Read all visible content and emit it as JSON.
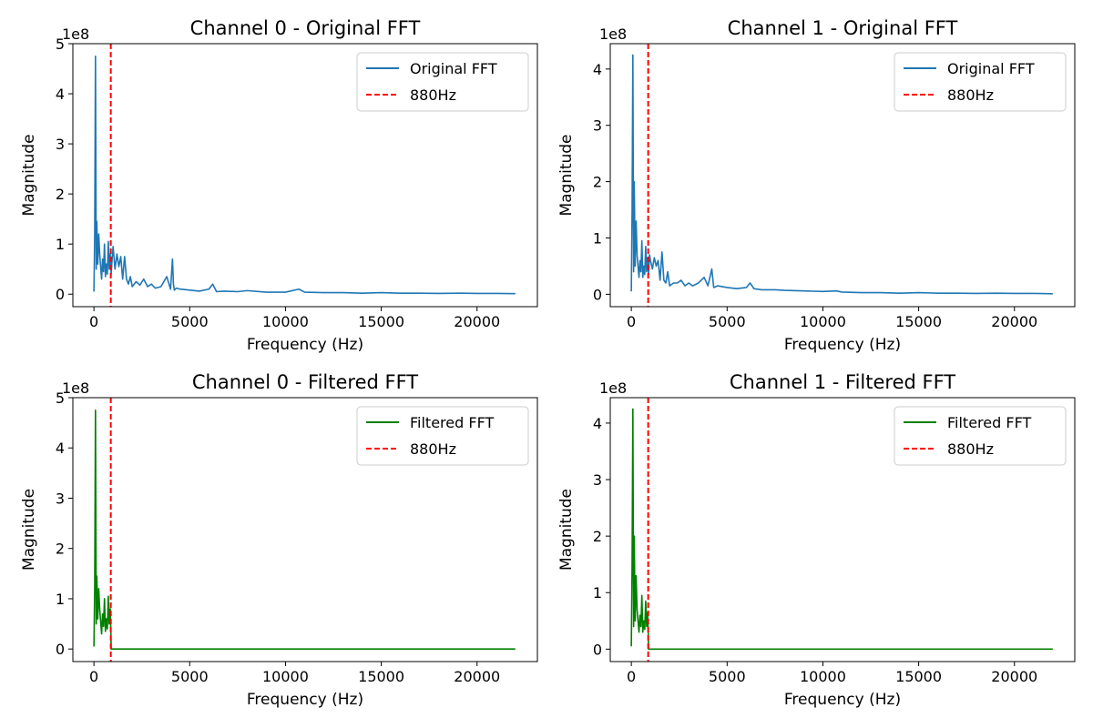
{
  "figure": {
    "background": "#ffffff"
  },
  "chart_data": [
    {
      "type": "line",
      "title": "Channel 0 - Original FFT",
      "xlabel": "Frequency (Hz)",
      "ylabel": "Magnitude",
      "y_offset_label": "1e8",
      "xlim": [
        -1100,
        23150
      ],
      "ylim": [
        -0.25,
        5.0
      ],
      "xticks": [
        0,
        5000,
        10000,
        15000,
        20000
      ],
      "yticks": [
        0,
        1,
        2,
        3,
        4,
        5
      ],
      "grid": false,
      "legend_position": "top-right",
      "vline": {
        "x": 880,
        "label": "880Hz",
        "color": "#ff0000",
        "style": "dashed"
      },
      "series": [
        {
          "name": "Original FFT",
          "color": "#1f77b4",
          "x": [
            0,
            40,
            80,
            120,
            150,
            200,
            250,
            300,
            350,
            400,
            450,
            500,
            550,
            600,
            650,
            700,
            750,
            800,
            850,
            900,
            950,
            1000,
            1100,
            1200,
            1300,
            1400,
            1500,
            1600,
            1700,
            1800,
            1900,
            2000,
            2200,
            2400,
            2600,
            2800,
            3000,
            3200,
            3500,
            3800,
            4000,
            4100,
            4150,
            4200,
            4300,
            4500,
            5000,
            5500,
            6000,
            6200,
            6400,
            6800,
            7500,
            8000,
            9000,
            10000,
            10700,
            11000,
            12000,
            13000,
            14000,
            15000,
            16000,
            17000,
            18000,
            19000,
            20000,
            21000,
            22000
          ],
          "y": [
            0.05,
            1.2,
            4.75,
            0.5,
            1.45,
            0.6,
            1.2,
            0.8,
            0.55,
            0.3,
            0.7,
            0.45,
            1.0,
            0.35,
            0.6,
            0.4,
            1.05,
            0.5,
            0.8,
            0.4,
            0.7,
            0.95,
            0.5,
            0.8,
            0.55,
            0.75,
            0.3,
            0.75,
            0.3,
            0.2,
            0.35,
            0.15,
            0.25,
            0.18,
            0.3,
            0.15,
            0.2,
            0.12,
            0.15,
            0.35,
            0.1,
            0.7,
            0.2,
            0.08,
            0.12,
            0.1,
            0.08,
            0.06,
            0.1,
            0.2,
            0.05,
            0.06,
            0.05,
            0.07,
            0.04,
            0.04,
            0.1,
            0.04,
            0.03,
            0.03,
            0.02,
            0.03,
            0.02,
            0.02,
            0.015,
            0.02,
            0.015,
            0.015,
            0.01
          ]
        }
      ]
    },
    {
      "type": "line",
      "title": "Channel 1 - Original FFT",
      "xlabel": "Frequency (Hz)",
      "ylabel": "Magnitude",
      "y_offset_label": "1e8",
      "xlim": [
        -1100,
        23150
      ],
      "ylim": [
        -0.22,
        4.45
      ],
      "xticks": [
        0,
        5000,
        10000,
        15000,
        20000
      ],
      "yticks": [
        0,
        1,
        2,
        3,
        4
      ],
      "grid": false,
      "legend_position": "top-right",
      "vline": {
        "x": 880,
        "label": "880Hz",
        "color": "#ff0000",
        "style": "dashed"
      },
      "series": [
        {
          "name": "Original FFT",
          "color": "#1f77b4",
          "x": [
            0,
            40,
            80,
            120,
            150,
            200,
            250,
            300,
            350,
            400,
            450,
            500,
            550,
            600,
            650,
            700,
            750,
            800,
            850,
            900,
            950,
            1000,
            1100,
            1200,
            1300,
            1400,
            1500,
            1600,
            1700,
            1800,
            1900,
            2000,
            2200,
            2400,
            2600,
            2800,
            3000,
            3200,
            3500,
            3800,
            4000,
            4200,
            4300,
            4500,
            5000,
            5500,
            6000,
            6200,
            6400,
            6800,
            7500,
            8000,
            9000,
            10000,
            10700,
            11000,
            12000,
            13000,
            14000,
            15000,
            16000,
            17000,
            18000,
            19000,
            20000,
            21000,
            22000
          ],
          "y": [
            0.05,
            1.5,
            4.25,
            0.4,
            2.0,
            0.5,
            1.3,
            0.7,
            0.5,
            0.3,
            0.6,
            0.4,
            0.95,
            0.3,
            0.5,
            0.35,
            0.85,
            0.4,
            0.65,
            0.35,
            0.7,
            0.6,
            0.45,
            0.65,
            0.5,
            0.6,
            0.25,
            0.75,
            0.25,
            0.2,
            0.4,
            0.15,
            0.2,
            0.2,
            0.25,
            0.15,
            0.2,
            0.15,
            0.2,
            0.3,
            0.15,
            0.45,
            0.12,
            0.15,
            0.12,
            0.1,
            0.12,
            0.2,
            0.1,
            0.08,
            0.08,
            0.07,
            0.06,
            0.05,
            0.06,
            0.04,
            0.03,
            0.03,
            0.02,
            0.03,
            0.02,
            0.02,
            0.015,
            0.02,
            0.015,
            0.015,
            0.01
          ]
        }
      ]
    },
    {
      "type": "line",
      "title": "Channel 0 - Filtered FFT",
      "xlabel": "Frequency (Hz)",
      "ylabel": "Magnitude",
      "y_offset_label": "1e8",
      "xlim": [
        -1100,
        23150
      ],
      "ylim": [
        -0.25,
        5.0
      ],
      "xticks": [
        0,
        5000,
        10000,
        15000,
        20000
      ],
      "yticks": [
        0,
        1,
        2,
        3,
        4,
        5
      ],
      "grid": false,
      "legend_position": "top-right",
      "vline": {
        "x": 880,
        "label": "880Hz",
        "color": "#ff0000",
        "style": "dashed"
      },
      "series": [
        {
          "name": "Filtered FFT",
          "color": "#008000",
          "x": [
            0,
            40,
            80,
            120,
            150,
            200,
            250,
            300,
            350,
            400,
            450,
            500,
            550,
            600,
            650,
            700,
            750,
            800,
            850,
            880,
            900,
            2000,
            5000,
            10000,
            15000,
            20000,
            22000
          ],
          "y": [
            0.05,
            1.2,
            4.75,
            0.5,
            1.45,
            0.6,
            1.2,
            0.8,
            0.55,
            0.3,
            0.7,
            0.45,
            1.0,
            0.35,
            0.6,
            0.4,
            1.05,
            0.5,
            0.8,
            0.4,
            0,
            0,
            0,
            0,
            0,
            0,
            0
          ]
        }
      ]
    },
    {
      "type": "line",
      "title": "Channel 1 - Filtered FFT",
      "xlabel": "Frequency (Hz)",
      "ylabel": "Magnitude",
      "y_offset_label": "1e8",
      "xlim": [
        -1100,
        23150
      ],
      "ylim": [
        -0.22,
        4.45
      ],
      "xticks": [
        0,
        5000,
        10000,
        15000,
        20000
      ],
      "yticks": [
        0,
        1,
        2,
        3,
        4
      ],
      "grid": false,
      "legend_position": "top-right",
      "vline": {
        "x": 880,
        "label": "880Hz",
        "color": "#ff0000",
        "style": "dashed"
      },
      "series": [
        {
          "name": "Filtered FFT",
          "color": "#008000",
          "x": [
            0,
            40,
            80,
            120,
            150,
            200,
            250,
            300,
            350,
            400,
            450,
            500,
            550,
            600,
            650,
            700,
            750,
            800,
            850,
            880,
            900,
            2000,
            5000,
            10000,
            15000,
            20000,
            22000
          ],
          "y": [
            0.05,
            1.5,
            4.25,
            0.4,
            2.0,
            0.5,
            1.3,
            0.7,
            0.5,
            0.3,
            0.6,
            0.4,
            0.95,
            0.3,
            0.5,
            0.35,
            0.85,
            0.4,
            0.65,
            0.35,
            0,
            0,
            0,
            0,
            0,
            0,
            0
          ]
        }
      ]
    }
  ]
}
